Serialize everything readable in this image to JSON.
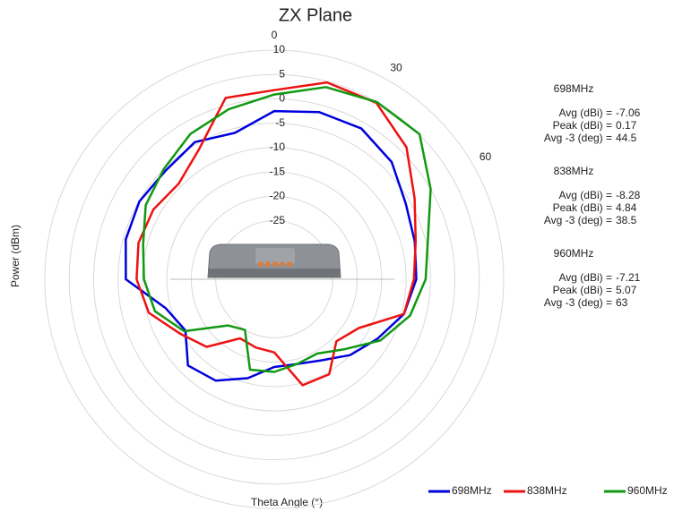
{
  "chart_data": {
    "type": "polar",
    "title": "ZX Plane",
    "y_label": "Power (dBm)",
    "x_label": "Theta  Angle (°)",
    "x": [
      0,
      15,
      30,
      45,
      60,
      75,
      90,
      105,
      120,
      135,
      150,
      165,
      180,
      195,
      210,
      225,
      240,
      255,
      270,
      285,
      300,
      315,
      330,
      345
    ],
    "rlim": [
      -37,
      10
    ],
    "rticks": [
      10,
      5,
      0,
      -5,
      -10,
      -15,
      -20,
      -25
    ],
    "thetaticks": [
      0,
      30,
      60
    ],
    "grid": true,
    "legend": "bottom-right",
    "series": [
      {
        "name": "698MHz",
        "color": "#0000dd",
        "values": [
          -2.5,
          -1.5,
          -1.3,
          -3,
          -5.9,
          -7.2,
          -7.9,
          -9.5,
          -12.6,
          -15,
          -17.8,
          -19,
          -19,
          -16,
          -13,
          -12,
          -16,
          -14,
          -6.6,
          -5.5,
          -5.1,
          -5.5,
          -4.5,
          -5.9
        ]
      },
      {
        "name": "838MHz",
        "color": "#ee1111",
        "values": [
          1.8,
          4.8,
          4.8,
          1.3,
          -3.8,
          -7,
          -8.4,
          -9.5,
          -17,
          -19,
          -14.5,
          -14.5,
          -22,
          -22.5,
          -23,
          -17.4,
          -14.7,
          -10.4,
          -8.8,
          -8.2,
          -8.4,
          -9.3,
          -6.2,
          1.5
        ]
      },
      {
        "name": "960MHz",
        "color": "#119911",
        "values": [
          0.9,
          3.8,
          5,
          5.1,
          0,
          -4.4,
          -6,
          -8.2,
          -11.9,
          -16.7,
          -19.4,
          -19,
          -18,
          -17.8,
          -25,
          -23.6,
          -15.7,
          -11.7,
          -10.3,
          -9.2,
          -6.6,
          -5,
          -2.6,
          -0.9
        ]
      }
    ],
    "stats": [
      {
        "title": "698MHz",
        "rows": [
          {
            "label": "Avg (dBi) =",
            "value": -7.06
          },
          {
            "label": "Peak (dBi) =",
            "value": 0.17
          },
          {
            "label": "Avg -3 (deg) =",
            "value": 44.5
          }
        ]
      },
      {
        "title": "838MHz",
        "rows": [
          {
            "label": "Avg (dBi) =",
            "value": -8.28
          },
          {
            "label": "Peak (dBi) =",
            "value": 4.84
          },
          {
            "label": "Avg -3 (deg) =",
            "value": 38.5
          }
        ]
      },
      {
        "title": "960MHz",
        "rows": [
          {
            "label": "Avg (dBi) =",
            "value": -7.21
          },
          {
            "label": "Peak (dBi) =",
            "value": 5.07
          },
          {
            "label": "Avg -3 (deg) =",
            "value": 63
          }
        ]
      }
    ]
  }
}
